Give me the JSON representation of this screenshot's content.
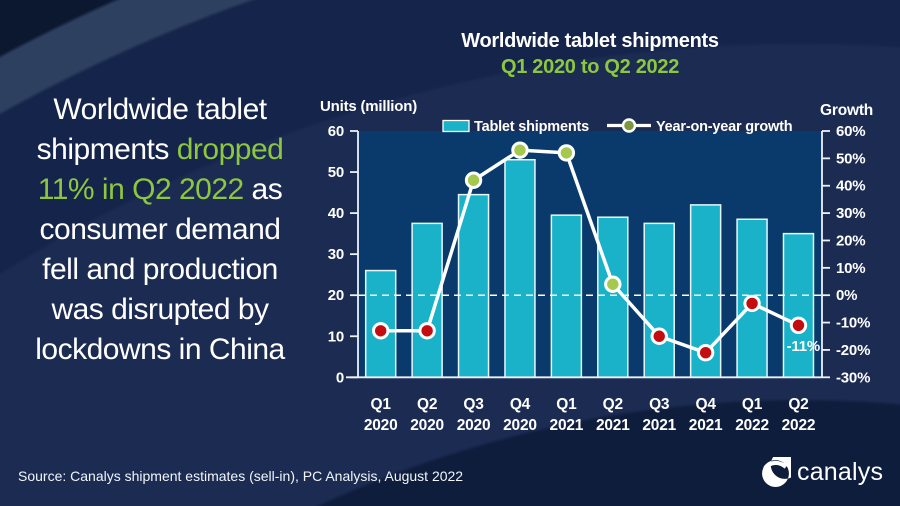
{
  "page": {
    "headline": {
      "full_text": "Worldwide tablet shipments dropped 11% in Q2 2022 as consumer demand fell and production was disrupted by lockdowns in China",
      "lines": [
        [
          {
            "text": "Worldwide tablet",
            "color": "white"
          }
        ],
        [
          {
            "text": "shipments ",
            "color": "white"
          },
          {
            "text": "dropped",
            "color": "green"
          }
        ],
        [
          {
            "text": "11% in Q2 2022",
            "color": "green"
          },
          {
            "text": " as",
            "color": "white"
          }
        ],
        [
          {
            "text": "consumer demand",
            "color": "white"
          }
        ],
        [
          {
            "text": "fell and production",
            "color": "white"
          }
        ],
        [
          {
            "text": "was disrupted by",
            "color": "white"
          }
        ],
        [
          {
            "text": "lockdowns in China",
            "color": "white"
          }
        ]
      ]
    },
    "source": "Source: Canalys shipment estimates (sell-in), PC Analysis, August 2022",
    "brand": "canalys"
  },
  "chart_data": {
    "type": "bar+line",
    "title": "Worldwide tablet shipments",
    "subtitle": "Q1 2020 to Q2 2022",
    "categories": [
      "Q1 2020",
      "Q2 2020",
      "Q3 2020",
      "Q4 2020",
      "Q1 2021",
      "Q2 2021",
      "Q3 2021",
      "Q4 2021",
      "Q1 2022",
      "Q2 2022"
    ],
    "series": [
      {
        "name": "Tablet shipments",
        "type": "bar",
        "axis": "left",
        "unit": "million units",
        "values": [
          26,
          37.5,
          44.5,
          53,
          39.5,
          39,
          37.5,
          42,
          38.5,
          35
        ]
      },
      {
        "name": "Year-on-year growth",
        "type": "line",
        "axis": "right",
        "unit": "%",
        "values": [
          -13,
          -13,
          42,
          53,
          52,
          4,
          -15,
          -21,
          -3,
          -11
        ]
      }
    ],
    "left_axis": {
      "label": "Units (million)",
      "min": 0,
      "max": 60,
      "tick_step": 10,
      "ticks": [
        "0",
        "10",
        "20",
        "30",
        "40",
        "50",
        "60"
      ]
    },
    "right_axis": {
      "label": "Growth",
      "min": -30,
      "max": 60,
      "tick_step": 10,
      "ticks": [
        "-30%",
        "-20%",
        "-10%",
        "0%",
        "10%",
        "20%",
        "30%",
        "40%",
        "50%",
        "60%"
      ]
    },
    "zero_growth_gridline": true,
    "grid": "off",
    "legend_position": "top",
    "legend": [
      "Tablet shipments",
      "Year-on-year growth"
    ],
    "annotation": {
      "text": "-11%",
      "category": "Q2 2022"
    },
    "colors": {
      "bar_fill": "#19b2c9",
      "bar_stroke": "#e8f6f9",
      "line": "#ffffff",
      "marker_positive": "#a5c94f",
      "marker_negative": "#c40d10",
      "legend_marker": "#7d973e",
      "plot_background": "#0a3a6c",
      "accent_green": "#8dc63f",
      "axis": "#edf1f8",
      "text": "#ffffff"
    }
  }
}
